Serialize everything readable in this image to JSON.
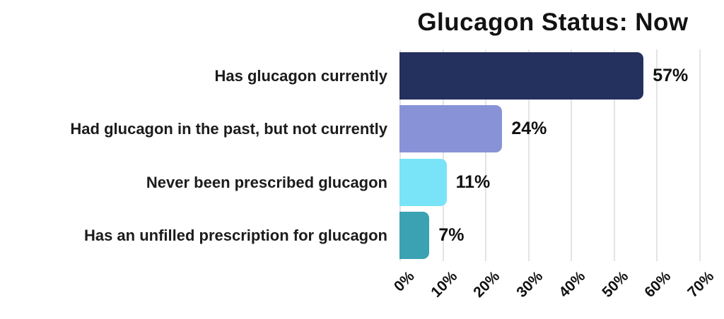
{
  "chart_data": {
    "type": "bar",
    "orientation": "horizontal",
    "title": "Glucagon Status: Now",
    "categories": [
      "Has glucagon currently",
      "Had glucagon in the past, but not currently",
      "Never been prescribed glucagon",
      "Has an unfilled prescription for glucagon"
    ],
    "values": [
      57,
      24,
      11,
      7
    ],
    "value_labels": [
      "57%",
      "24%",
      "11%",
      "7%"
    ],
    "bar_colors": [
      "#24305e",
      "#8793d6",
      "#79e4f7",
      "#3aa2b2"
    ],
    "x_tick_labels": [
      "0%",
      "10%",
      "20%",
      "30%",
      "40%",
      "50%",
      "60%",
      "70%"
    ],
    "x_tick_values": [
      0,
      10,
      20,
      30,
      40,
      50,
      60,
      70
    ],
    "xlim": [
      0,
      70
    ],
    "grid": "vertical",
    "gridline_color": "#e4e4e4",
    "title_color": "#121212",
    "label_color": "#1c1c1c",
    "legend": "none",
    "xlabel": "",
    "ylabel": ""
  }
}
